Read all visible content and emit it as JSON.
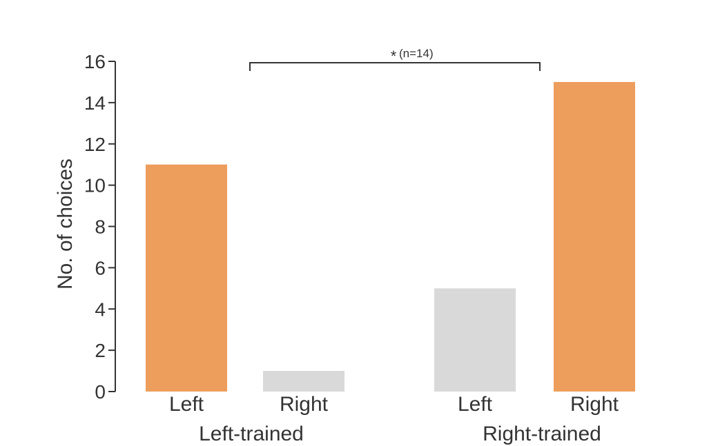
{
  "chart_data": {
    "type": "bar",
    "ylabel": "No. of choices",
    "ylim": [
      0,
      16
    ],
    "yticks": [
      0,
      2,
      4,
      6,
      8,
      10,
      12,
      14,
      16
    ],
    "groups": [
      {
        "label": "Left-trained",
        "bars": [
          {
            "category": "Left",
            "value": 11,
            "color": "#ED9E5C"
          },
          {
            "category": "Right",
            "value": 1,
            "color": "#D9D9D9"
          }
        ]
      },
      {
        "label": "Right-trained",
        "bars": [
          {
            "category": "Left",
            "value": 5,
            "color": "#D9D9D9"
          },
          {
            "category": "Right",
            "value": 15,
            "color": "#ED9E5C"
          }
        ]
      }
    ],
    "annotation": {
      "star": "*",
      "text": "(n=14)"
    },
    "grid": false
  }
}
